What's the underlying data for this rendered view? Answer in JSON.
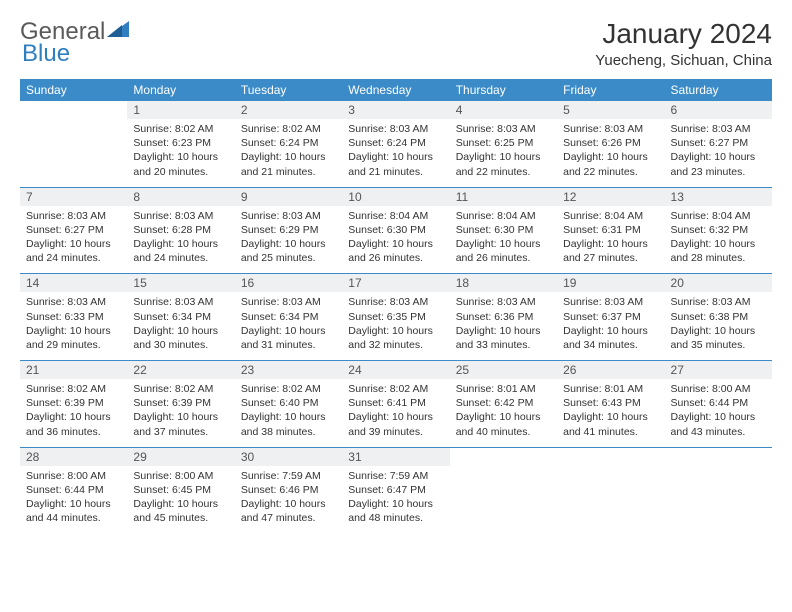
{
  "logo": {
    "part1": "General",
    "part2": "Blue"
  },
  "title": "January 2024",
  "location": "Yuecheng, Sichuan, China",
  "colors": {
    "header_bg": "#3b8bc8",
    "header_fg": "#ffffff",
    "daynum_bg": "#eef0f1",
    "text": "#333333",
    "logo_gray": "#5a5a5a",
    "logo_blue": "#2f7fc0",
    "rule": "#3b8bc8"
  },
  "weekdays": [
    "Sunday",
    "Monday",
    "Tuesday",
    "Wednesday",
    "Thursday",
    "Friday",
    "Saturday"
  ],
  "weeks": [
    [
      {
        "num": "",
        "lines": []
      },
      {
        "num": "1",
        "lines": [
          "Sunrise: 8:02 AM",
          "Sunset: 6:23 PM",
          "Daylight: 10 hours",
          "and 20 minutes."
        ]
      },
      {
        "num": "2",
        "lines": [
          "Sunrise: 8:02 AM",
          "Sunset: 6:24 PM",
          "Daylight: 10 hours",
          "and 21 minutes."
        ]
      },
      {
        "num": "3",
        "lines": [
          "Sunrise: 8:03 AM",
          "Sunset: 6:24 PM",
          "Daylight: 10 hours",
          "and 21 minutes."
        ]
      },
      {
        "num": "4",
        "lines": [
          "Sunrise: 8:03 AM",
          "Sunset: 6:25 PM",
          "Daylight: 10 hours",
          "and 22 minutes."
        ]
      },
      {
        "num": "5",
        "lines": [
          "Sunrise: 8:03 AM",
          "Sunset: 6:26 PM",
          "Daylight: 10 hours",
          "and 22 minutes."
        ]
      },
      {
        "num": "6",
        "lines": [
          "Sunrise: 8:03 AM",
          "Sunset: 6:27 PM",
          "Daylight: 10 hours",
          "and 23 minutes."
        ]
      }
    ],
    [
      {
        "num": "7",
        "lines": [
          "Sunrise: 8:03 AM",
          "Sunset: 6:27 PM",
          "Daylight: 10 hours",
          "and 24 minutes."
        ]
      },
      {
        "num": "8",
        "lines": [
          "Sunrise: 8:03 AM",
          "Sunset: 6:28 PM",
          "Daylight: 10 hours",
          "and 24 minutes."
        ]
      },
      {
        "num": "9",
        "lines": [
          "Sunrise: 8:03 AM",
          "Sunset: 6:29 PM",
          "Daylight: 10 hours",
          "and 25 minutes."
        ]
      },
      {
        "num": "10",
        "lines": [
          "Sunrise: 8:04 AM",
          "Sunset: 6:30 PM",
          "Daylight: 10 hours",
          "and 26 minutes."
        ]
      },
      {
        "num": "11",
        "lines": [
          "Sunrise: 8:04 AM",
          "Sunset: 6:30 PM",
          "Daylight: 10 hours",
          "and 26 minutes."
        ]
      },
      {
        "num": "12",
        "lines": [
          "Sunrise: 8:04 AM",
          "Sunset: 6:31 PM",
          "Daylight: 10 hours",
          "and 27 minutes."
        ]
      },
      {
        "num": "13",
        "lines": [
          "Sunrise: 8:04 AM",
          "Sunset: 6:32 PM",
          "Daylight: 10 hours",
          "and 28 minutes."
        ]
      }
    ],
    [
      {
        "num": "14",
        "lines": [
          "Sunrise: 8:03 AM",
          "Sunset: 6:33 PM",
          "Daylight: 10 hours",
          "and 29 minutes."
        ]
      },
      {
        "num": "15",
        "lines": [
          "Sunrise: 8:03 AM",
          "Sunset: 6:34 PM",
          "Daylight: 10 hours",
          "and 30 minutes."
        ]
      },
      {
        "num": "16",
        "lines": [
          "Sunrise: 8:03 AM",
          "Sunset: 6:34 PM",
          "Daylight: 10 hours",
          "and 31 minutes."
        ]
      },
      {
        "num": "17",
        "lines": [
          "Sunrise: 8:03 AM",
          "Sunset: 6:35 PM",
          "Daylight: 10 hours",
          "and 32 minutes."
        ]
      },
      {
        "num": "18",
        "lines": [
          "Sunrise: 8:03 AM",
          "Sunset: 6:36 PM",
          "Daylight: 10 hours",
          "and 33 minutes."
        ]
      },
      {
        "num": "19",
        "lines": [
          "Sunrise: 8:03 AM",
          "Sunset: 6:37 PM",
          "Daylight: 10 hours",
          "and 34 minutes."
        ]
      },
      {
        "num": "20",
        "lines": [
          "Sunrise: 8:03 AM",
          "Sunset: 6:38 PM",
          "Daylight: 10 hours",
          "and 35 minutes."
        ]
      }
    ],
    [
      {
        "num": "21",
        "lines": [
          "Sunrise: 8:02 AM",
          "Sunset: 6:39 PM",
          "Daylight: 10 hours",
          "and 36 minutes."
        ]
      },
      {
        "num": "22",
        "lines": [
          "Sunrise: 8:02 AM",
          "Sunset: 6:39 PM",
          "Daylight: 10 hours",
          "and 37 minutes."
        ]
      },
      {
        "num": "23",
        "lines": [
          "Sunrise: 8:02 AM",
          "Sunset: 6:40 PM",
          "Daylight: 10 hours",
          "and 38 minutes."
        ]
      },
      {
        "num": "24",
        "lines": [
          "Sunrise: 8:02 AM",
          "Sunset: 6:41 PM",
          "Daylight: 10 hours",
          "and 39 minutes."
        ]
      },
      {
        "num": "25",
        "lines": [
          "Sunrise: 8:01 AM",
          "Sunset: 6:42 PM",
          "Daylight: 10 hours",
          "and 40 minutes."
        ]
      },
      {
        "num": "26",
        "lines": [
          "Sunrise: 8:01 AM",
          "Sunset: 6:43 PM",
          "Daylight: 10 hours",
          "and 41 minutes."
        ]
      },
      {
        "num": "27",
        "lines": [
          "Sunrise: 8:00 AM",
          "Sunset: 6:44 PM",
          "Daylight: 10 hours",
          "and 43 minutes."
        ]
      }
    ],
    [
      {
        "num": "28",
        "lines": [
          "Sunrise: 8:00 AM",
          "Sunset: 6:44 PM",
          "Daylight: 10 hours",
          "and 44 minutes."
        ]
      },
      {
        "num": "29",
        "lines": [
          "Sunrise: 8:00 AM",
          "Sunset: 6:45 PM",
          "Daylight: 10 hours",
          "and 45 minutes."
        ]
      },
      {
        "num": "30",
        "lines": [
          "Sunrise: 7:59 AM",
          "Sunset: 6:46 PM",
          "Daylight: 10 hours",
          "and 47 minutes."
        ]
      },
      {
        "num": "31",
        "lines": [
          "Sunrise: 7:59 AM",
          "Sunset: 6:47 PM",
          "Daylight: 10 hours",
          "and 48 minutes."
        ]
      },
      {
        "num": "",
        "lines": []
      },
      {
        "num": "",
        "lines": []
      },
      {
        "num": "",
        "lines": []
      }
    ]
  ]
}
